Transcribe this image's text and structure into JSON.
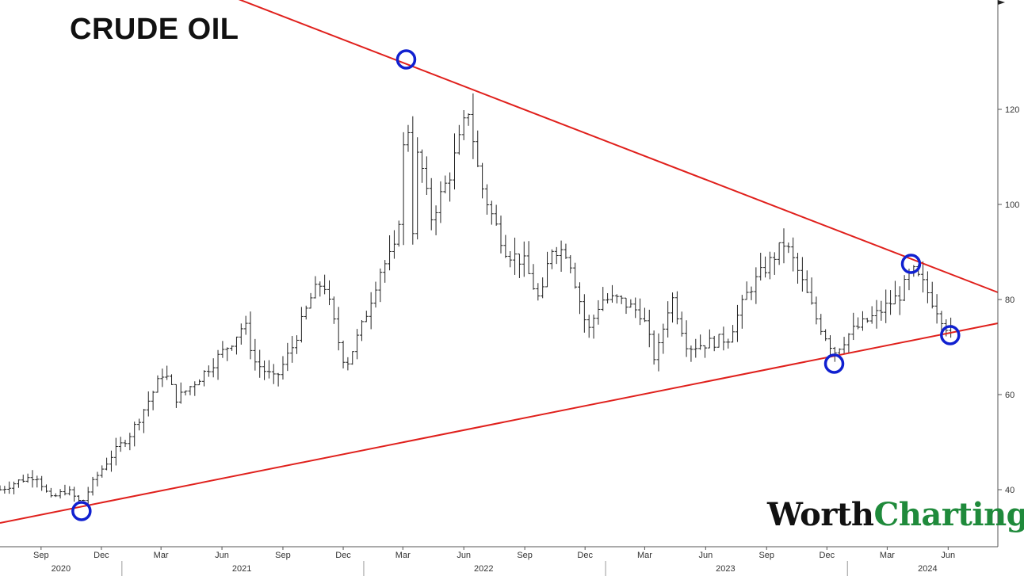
{
  "title": "CRUDE OIL",
  "brand": {
    "word1": "Worth",
    "word2": "Charting",
    "color_dark": "#111111",
    "color_green": "#1f8a3b"
  },
  "chart_data": {
    "type": "ohlc",
    "title": "CRUDE OIL",
    "ylim": [
      28,
      143
    ],
    "xlim": [
      "2020-07-01",
      "2024-08-15"
    ],
    "y_ticks": [
      40,
      60,
      80,
      100,
      120
    ],
    "y_tick_labels": [
      "40",
      "60",
      "80",
      "100",
      "120"
    ],
    "x_month_ticks": [
      {
        "date": "2020-09-01",
        "label": "Sep"
      },
      {
        "date": "2020-12-01",
        "label": "Dec"
      },
      {
        "date": "2021-03-01",
        "label": "Mar"
      },
      {
        "date": "2021-06-01",
        "label": "Jun"
      },
      {
        "date": "2021-09-01",
        "label": "Sep"
      },
      {
        "date": "2021-12-01",
        "label": "Dec"
      },
      {
        "date": "2022-03-01",
        "label": "Mar"
      },
      {
        "date": "2022-06-01",
        "label": "Jun"
      },
      {
        "date": "2022-09-01",
        "label": "Sep"
      },
      {
        "date": "2022-12-01",
        "label": "Dec"
      },
      {
        "date": "2023-03-01",
        "label": "Mar"
      },
      {
        "date": "2023-06-01",
        "label": "Jun"
      },
      {
        "date": "2023-09-01",
        "label": "Sep"
      },
      {
        "date": "2023-12-01",
        "label": "Dec"
      },
      {
        "date": "2024-03-01",
        "label": "Mar"
      },
      {
        "date": "2024-06-01",
        "label": "Jun"
      }
    ],
    "x_year_labels": [
      {
        "date": "2020-10-01",
        "label": "2020"
      },
      {
        "date": "2021-07-01",
        "label": "2021"
      },
      {
        "date": "2022-07-01",
        "label": "2022"
      },
      {
        "date": "2023-07-01",
        "label": "2023"
      },
      {
        "date": "2024-05-01",
        "label": "2024"
      }
    ],
    "year_dividers": [
      "2021-01-01",
      "2022-01-01",
      "2023-01-01",
      "2024-01-01"
    ],
    "series": [
      {
        "close_anchors": [
          [
            "2020-07-01",
            40
          ],
          [
            "2020-08-01",
            42
          ],
          [
            "2020-08-25",
            43
          ],
          [
            "2020-09-15",
            38
          ],
          [
            "2020-10-10",
            40
          ],
          [
            "2020-11-01",
            37
          ],
          [
            "2020-11-20",
            42
          ],
          [
            "2020-12-15",
            47
          ],
          [
            "2021-01-15",
            52
          ],
          [
            "2021-02-15",
            60
          ],
          [
            "2021-03-05",
            65
          ],
          [
            "2021-03-25",
            59
          ],
          [
            "2021-05-01",
            64
          ],
          [
            "2021-06-15",
            71
          ],
          [
            "2021-07-05",
            75
          ],
          [
            "2021-07-20",
            67
          ],
          [
            "2021-08-20",
            63
          ],
          [
            "2021-09-15",
            70
          ],
          [
            "2021-10-15",
            81
          ],
          [
            "2021-11-01",
            84
          ],
          [
            "2021-11-26",
            70
          ],
          [
            "2021-12-05",
            66
          ],
          [
            "2021-12-31",
            75
          ],
          [
            "2022-01-25",
            86
          ],
          [
            "2022-02-20",
            91
          ],
          [
            "2022-03-07",
            122
          ],
          [
            "2022-03-16",
            95
          ],
          [
            "2022-03-24",
            112
          ],
          [
            "2022-04-12",
            97
          ],
          [
            "2022-05-10",
            106
          ],
          [
            "2022-06-08",
            120
          ],
          [
            "2022-06-25",
            105
          ],
          [
            "2022-07-15",
            97
          ],
          [
            "2022-08-05",
            90
          ],
          [
            "2022-08-30",
            88
          ],
          [
            "2022-09-25",
            79
          ],
          [
            "2022-10-10",
            91
          ],
          [
            "2022-11-05",
            90
          ],
          [
            "2022-12-05",
            73
          ],
          [
            "2022-12-25",
            80
          ],
          [
            "2023-01-20",
            80
          ],
          [
            "2023-02-25",
            77
          ],
          [
            "2023-03-17",
            67
          ],
          [
            "2023-04-10",
            81
          ],
          [
            "2023-05-05",
            70
          ],
          [
            "2023-06-10",
            71
          ],
          [
            "2023-07-05",
            72
          ],
          [
            "2023-08-05",
            82
          ],
          [
            "2023-09-28",
            92
          ],
          [
            "2023-10-15",
            87
          ],
          [
            "2023-11-15",
            76
          ],
          [
            "2023-12-12",
            69
          ],
          [
            "2024-01-05",
            73
          ],
          [
            "2024-02-15",
            77
          ],
          [
            "2024-03-20",
            81
          ],
          [
            "2024-04-08",
            86
          ],
          [
            "2024-04-25",
            83
          ],
          [
            "2024-05-15",
            78
          ],
          [
            "2024-06-04",
            73
          ],
          [
            "2024-06-10",
            76
          ]
        ]
      }
    ],
    "trendlines": [
      {
        "name": "upper",
        "from": {
          "date": "2021-02-19",
          "price": 150
        },
        "to": {
          "date": "2024-08-15",
          "price": 81.5
        },
        "color": "#e0201c"
      },
      {
        "name": "lower",
        "from": {
          "date": "2020-07-01",
          "price": 33
        },
        "to": {
          "date": "2024-08-15",
          "price": 75
        },
        "color": "#e0201c"
      }
    ],
    "touch_points": [
      {
        "date": "2020-11-01",
        "price": 35.5
      },
      {
        "date": "2022-03-06",
        "price": 130.5
      },
      {
        "date": "2023-12-12",
        "price": 66.5
      },
      {
        "date": "2024-04-06",
        "price": 87.5
      },
      {
        "date": "2024-06-04",
        "price": 72.5
      }
    ],
    "colors": {
      "bars": "#222222",
      "trendline": "#e0201c",
      "markers": "#1020d0",
      "axis": "#555555"
    }
  }
}
